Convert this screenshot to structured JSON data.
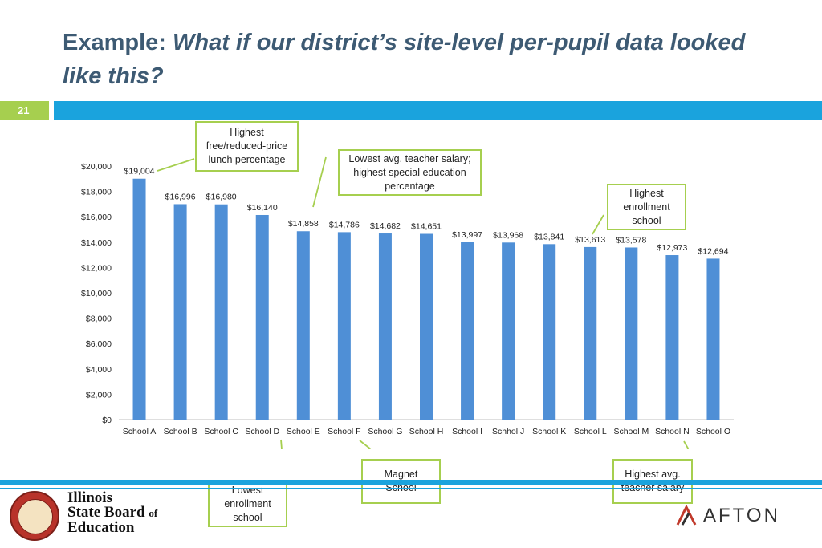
{
  "slide": {
    "title_plain": "Example: ",
    "title_italic": "What if our district’s site-level per-pupil data looked like this?",
    "number": "21",
    "colors": {
      "title": "#3d5a73",
      "accent_blue": "#1aa3dd",
      "accent_green": "#a6cf4f",
      "bar": "#4f8fd6"
    }
  },
  "chart_data": {
    "type": "bar",
    "categories": [
      "School A",
      "School B",
      "School C",
      "School D",
      "School E",
      "School F",
      "School G",
      "School H",
      "School I",
      "Schhol J",
      "School K",
      "School L",
      "School M",
      "School N",
      "School O"
    ],
    "values": [
      19004,
      16996,
      16980,
      16140,
      14858,
      14786,
      14682,
      14651,
      13997,
      13968,
      13841,
      13613,
      13578,
      12973,
      12694
    ],
    "value_labels": [
      "$19,004",
      "$16,996",
      "$16,980",
      "$16,140",
      "$14,858",
      "$14,786",
      "$14,682",
      "$14,651",
      "$13,997",
      "$13,968",
      "$13,841",
      "$13,613",
      "$13,578",
      "$12,973",
      "$12,694"
    ],
    "y_ticks": [
      0,
      2000,
      4000,
      6000,
      8000,
      10000,
      12000,
      14000,
      16000,
      18000,
      20000
    ],
    "y_tick_labels": [
      "$0",
      "$2,000",
      "$4,000",
      "$6,000",
      "$8,000",
      "$10,000",
      "$12,000",
      "$14,000",
      "$16,000",
      "$18,000",
      "$20,000"
    ],
    "ylim": [
      0,
      20000
    ],
    "title": "",
    "xlabel": "",
    "ylabel": "",
    "grid": false,
    "legend": "none"
  },
  "callouts": {
    "free_lunch": "Highest\nfree/reduced-price\nlunch percentage",
    "teacher_salary_low": "Lowest avg. teacher salary;\nhighest special education\npercentage",
    "highest_enrollment": "Highest\nenrollment\nschool",
    "lowest_enrollment": "Lowest\nenrollment\nschool",
    "magnet": "Magnet\nSchool",
    "teacher_salary_high": "Highest avg.\nteacher salary"
  },
  "logos": {
    "isbe_line1": "Illinois",
    "isbe_line2": "State Board",
    "isbe_of": "of",
    "isbe_line3": "Education",
    "afton": "AFTON"
  }
}
